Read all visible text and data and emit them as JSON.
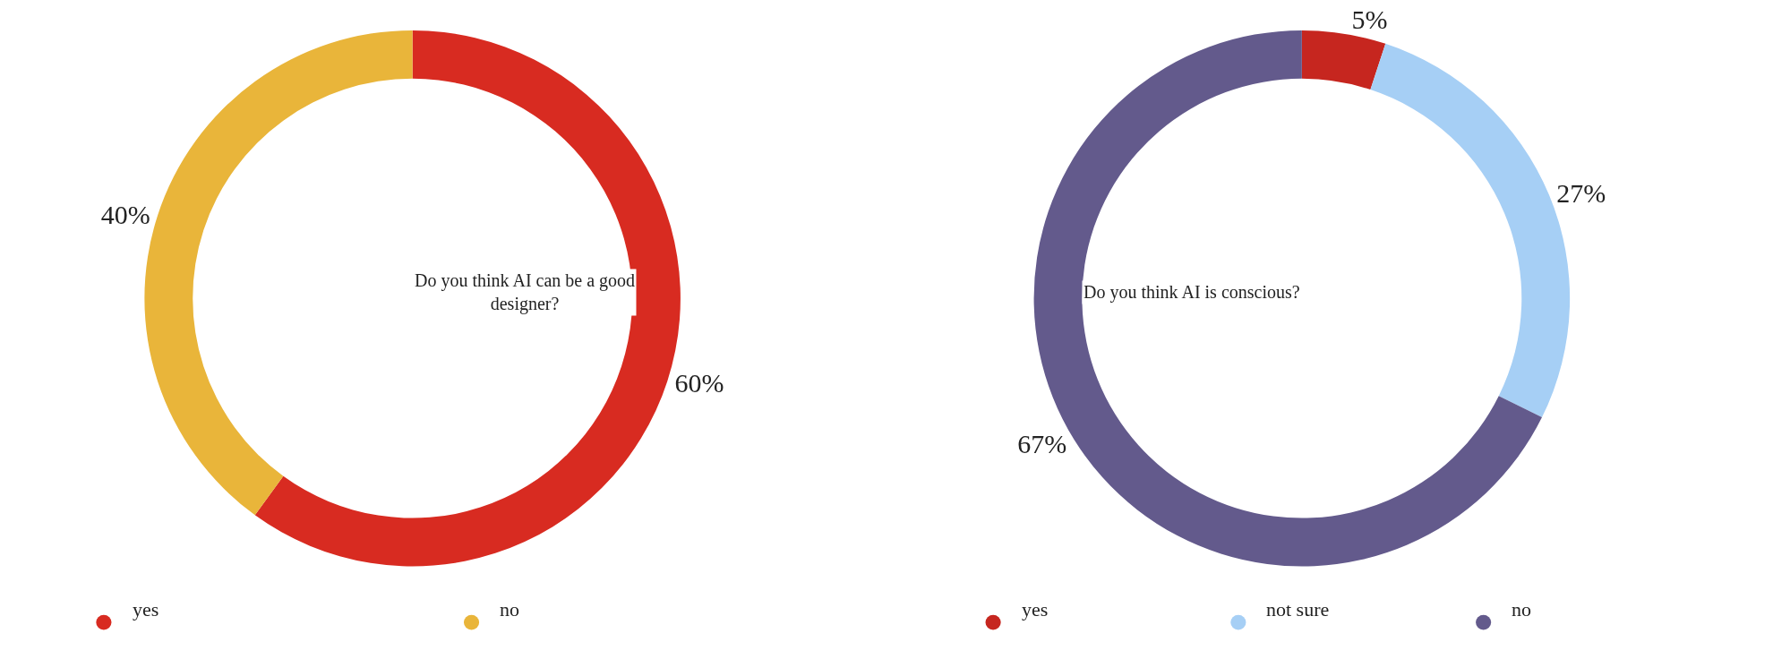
{
  "chart_data": [
    {
      "type": "donut",
      "title": "Do you think AI can be a good designer?",
      "categories": [
        "yes",
        "no"
      ],
      "values": [
        60,
        40
      ],
      "value_labels": [
        "60%",
        "40%"
      ],
      "colors": [
        "#d82b21",
        "#e9b53a"
      ],
      "legend": "bottom"
    },
    {
      "type": "donut",
      "title": "Do you think AI is conscious?",
      "categories": [
        "yes",
        "not sure",
        "no"
      ],
      "values": [
        5,
        27,
        67
      ],
      "value_labels": [
        "5%",
        "27%",
        "67%"
      ],
      "colors": [
        "#c6261f",
        "#a6cff5",
        "#635a8c"
      ],
      "legend": "bottom"
    }
  ]
}
